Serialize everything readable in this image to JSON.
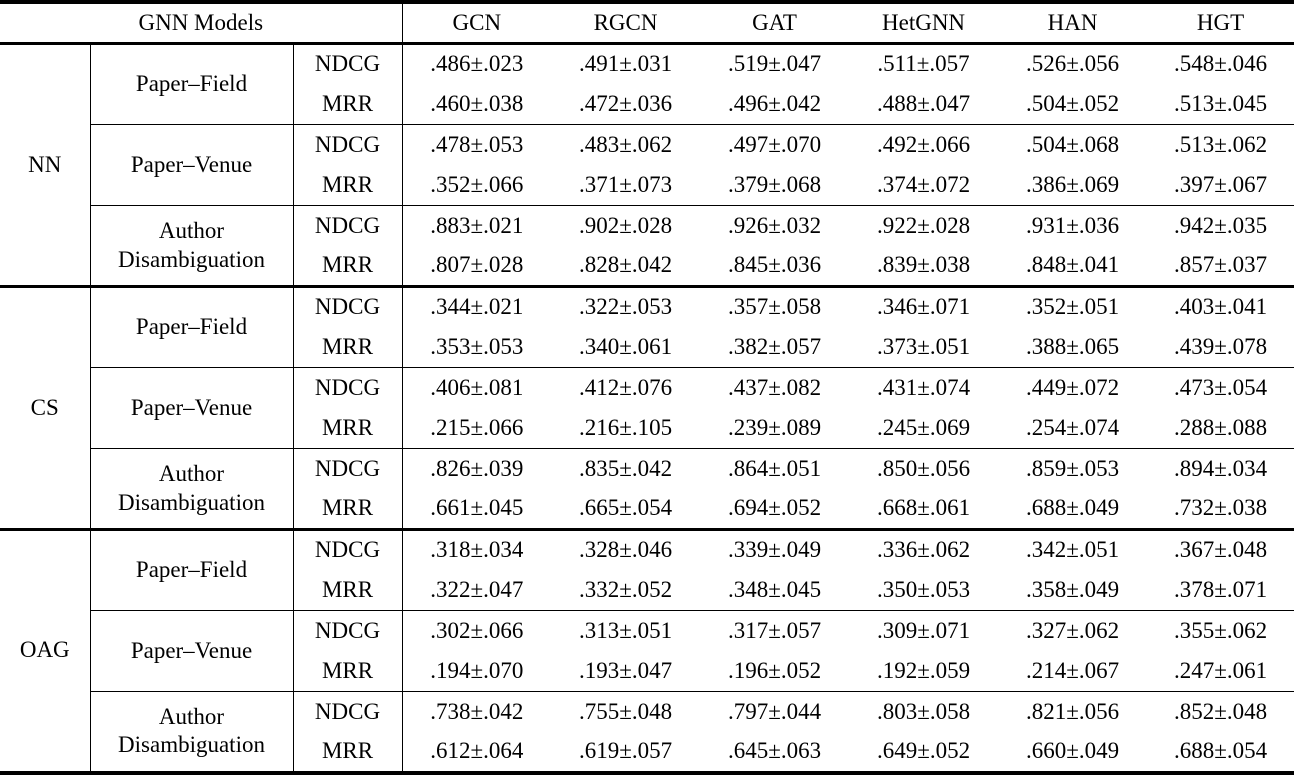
{
  "table": {
    "header": {
      "models_label": "GNN Models",
      "columns": [
        "GCN",
        "RGCN",
        "GAT",
        "HetGNN",
        "HAN",
        "HGT"
      ]
    },
    "groups": [
      {
        "dataset": "NN",
        "tasks": [
          {
            "name": "Paper–Field",
            "metrics": [
              {
                "label": "NDCG",
                "values": [
                  ".486±.023",
                  ".491±.031",
                  ".519±.047",
                  ".511±.057",
                  ".526±.056",
                  ".548±.046"
                ]
              },
              {
                "label": "MRR",
                "values": [
                  ".460±.038",
                  ".472±.036",
                  ".496±.042",
                  ".488±.047",
                  ".504±.052",
                  ".513±.045"
                ]
              }
            ]
          },
          {
            "name": "Paper–Venue",
            "metrics": [
              {
                "label": "NDCG",
                "values": [
                  ".478±.053",
                  ".483±.062",
                  ".497±.070",
                  ".492±.066",
                  ".504±.068",
                  ".513±.062"
                ]
              },
              {
                "label": "MRR",
                "values": [
                  ".352±.066",
                  ".371±.073",
                  ".379±.068",
                  ".374±.072",
                  ".386±.069",
                  ".397±.067"
                ]
              }
            ]
          },
          {
            "name": "Author Disambiguation",
            "metrics": [
              {
                "label": "NDCG",
                "values": [
                  ".883±.021",
                  ".902±.028",
                  ".926±.032",
                  ".922±.028",
                  ".931±.036",
                  ".942±.035"
                ]
              },
              {
                "label": "MRR",
                "values": [
                  ".807±.028",
                  ".828±.042",
                  ".845±.036",
                  ".839±.038",
                  ".848±.041",
                  ".857±.037"
                ]
              }
            ]
          }
        ]
      },
      {
        "dataset": "CS",
        "tasks": [
          {
            "name": "Paper–Field",
            "metrics": [
              {
                "label": "NDCG",
                "values": [
                  ".344±.021",
                  ".322±.053",
                  ".357±.058",
                  ".346±.071",
                  ".352±.051",
                  ".403±.041"
                ]
              },
              {
                "label": "MRR",
                "values": [
                  ".353±.053",
                  ".340±.061",
                  ".382±.057",
                  ".373±.051",
                  ".388±.065",
                  ".439±.078"
                ]
              }
            ]
          },
          {
            "name": "Paper–Venue",
            "metrics": [
              {
                "label": "NDCG",
                "values": [
                  ".406±.081",
                  ".412±.076",
                  ".437±.082",
                  ".431±.074",
                  ".449±.072",
                  ".473±.054"
                ]
              },
              {
                "label": "MRR",
                "values": [
                  ".215±.066",
                  ".216±.105",
                  ".239±.089",
                  ".245±.069",
                  ".254±.074",
                  ".288±.088"
                ]
              }
            ]
          },
          {
            "name": "Author Disambiguation",
            "metrics": [
              {
                "label": "NDCG",
                "values": [
                  ".826±.039",
                  ".835±.042",
                  ".864±.051",
                  ".850±.056",
                  ".859±.053",
                  ".894±.034"
                ]
              },
              {
                "label": "MRR",
                "values": [
                  ".661±.045",
                  ".665±.054",
                  ".694±.052",
                  ".668±.061",
                  ".688±.049",
                  ".732±.038"
                ]
              }
            ]
          }
        ]
      },
      {
        "dataset": "OAG",
        "tasks": [
          {
            "name": "Paper–Field",
            "metrics": [
              {
                "label": "NDCG",
                "values": [
                  ".318±.034",
                  ".328±.046",
                  ".339±.049",
                  ".336±.062",
                  ".342±.051",
                  ".367±.048"
                ]
              },
              {
                "label": "MRR",
                "values": [
                  ".322±.047",
                  ".332±.052",
                  ".348±.045",
                  ".350±.053",
                  ".358±.049",
                  ".378±.071"
                ]
              }
            ]
          },
          {
            "name": "Paper–Venue",
            "metrics": [
              {
                "label": "NDCG",
                "values": [
                  ".302±.066",
                  ".313±.051",
                  ".317±.057",
                  ".309±.071",
                  ".327±.062",
                  ".355±.062"
                ]
              },
              {
                "label": "MRR",
                "values": [
                  ".194±.070",
                  ".193±.047",
                  ".196±.052",
                  ".192±.059",
                  ".214±.067",
                  ".247±.061"
                ]
              }
            ]
          },
          {
            "name": "Author Disambiguation",
            "metrics": [
              {
                "label": "NDCG",
                "values": [
                  ".738±.042",
                  ".755±.048",
                  ".797±.044",
                  ".803±.058",
                  ".821±.056",
                  ".852±.048"
                ]
              },
              {
                "label": "MRR",
                "values": [
                  ".612±.064",
                  ".619±.057",
                  ".645±.063",
                  ".649±.052",
                  ".660±.049",
                  ".688±.054"
                ]
              }
            ]
          }
        ]
      }
    ]
  }
}
